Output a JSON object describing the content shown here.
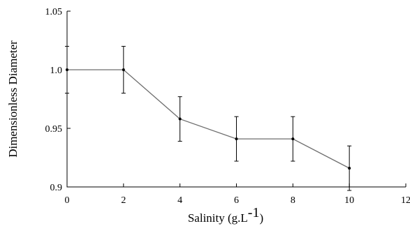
{
  "chart_data": {
    "type": "line",
    "x": [
      0,
      2,
      4,
      6,
      8,
      10
    ],
    "series": [
      {
        "values": [
          1.0,
          1.0,
          0.958,
          0.941,
          0.941,
          0.916
        ],
        "error": [
          0.02,
          0.02,
          0.019,
          0.019,
          0.019,
          0.019
        ]
      }
    ],
    "xlim": [
      0,
      12
    ],
    "ylim": [
      0.9,
      1.05
    ],
    "xticks": [
      0,
      2,
      4,
      6,
      8,
      10,
      12
    ],
    "xtick_labels": [
      "0",
      "2",
      "4",
      "6",
      "8",
      "10",
      "12"
    ],
    "yticks": [
      0.9,
      0.95,
      1.0,
      1.05
    ],
    "ytick_labels": [
      "0.9",
      "0.95",
      "1.0",
      "1.05"
    ],
    "xlabel_main": "Salinity (g.L",
    "xlabel_sup": "-1",
    "xlabel_close": ")",
    "ylabel": "Dimensionless Diameter",
    "grid": false,
    "colors": {
      "line": "#6e6e6e",
      "axis": "#000000",
      "marker": "#000000"
    }
  }
}
